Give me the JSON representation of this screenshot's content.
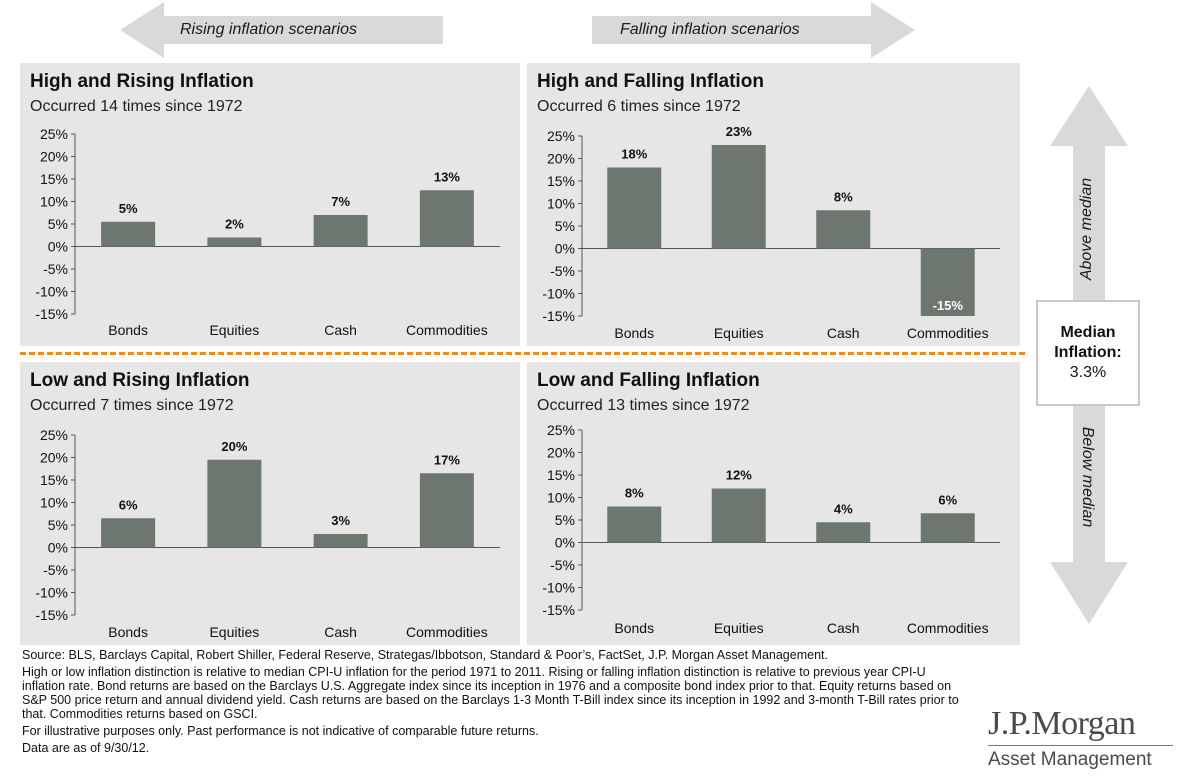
{
  "header": {
    "rising_label": "Rising inflation scenarios",
    "falling_label": "Falling inflation scenarios"
  },
  "side": {
    "above_label": "Above median",
    "below_label": "Below median",
    "median_line1": "Median",
    "median_line2": "Inflation:",
    "median_value": "3.3%"
  },
  "colors": {
    "bar": "#6e7670",
    "panel_bg": "#e6e6e6",
    "divider": "#f08a1e",
    "arrow": "#d9d9d9"
  },
  "chart_data": [
    {
      "type": "bar",
      "title": "High and Rising Inflation",
      "subtitle": "Occurred 14 times since 1972",
      "categories": [
        "Bonds",
        "Equities",
        "Cash",
        "Commodities"
      ],
      "values": [
        5.5,
        2,
        7,
        12.5
      ],
      "data_labels": [
        "5%",
        "2%",
        "7%",
        "13%"
      ],
      "ylim": [
        -15,
        25
      ],
      "yticks": [
        "25%",
        "20%",
        "15%",
        "10%",
        "5%",
        "0%",
        "-5%",
        "-10%",
        "-15%"
      ],
      "grid": false
    },
    {
      "type": "bar",
      "title": "High and Falling Inflation",
      "subtitle": "Occurred 6 times since 1972",
      "categories": [
        "Bonds",
        "Equities",
        "Cash",
        "Commodities"
      ],
      "values": [
        18,
        23,
        8.5,
        -15
      ],
      "data_labels": [
        "18%",
        "23%",
        "8%",
        "-15%"
      ],
      "ylim": [
        -15,
        25
      ],
      "yticks": [
        "25%",
        "20%",
        "15%",
        "10%",
        "5%",
        "0%",
        "-5%",
        "-10%",
        "-15%"
      ],
      "grid": false
    },
    {
      "type": "bar",
      "title": "Low and Rising Inflation",
      "subtitle": "Occurred 7 times since 1972",
      "categories": [
        "Bonds",
        "Equities",
        "Cash",
        "Commodities"
      ],
      "values": [
        6.5,
        19.5,
        3,
        16.5
      ],
      "data_labels": [
        "6%",
        "20%",
        "3%",
        "17%"
      ],
      "ylim": [
        -15,
        25
      ],
      "yticks": [
        "25%",
        "20%",
        "15%",
        "10%",
        "5%",
        "0%",
        "-5%",
        "-10%",
        "-15%"
      ],
      "grid": false
    },
    {
      "type": "bar",
      "title": "Low and Falling Inflation",
      "subtitle": "Occurred 13 times since 1972",
      "categories": [
        "Bonds",
        "Equities",
        "Cash",
        "Commodities"
      ],
      "values": [
        8,
        12,
        4.5,
        6.5
      ],
      "data_labels": [
        "8%",
        "12%",
        "4%",
        "6%"
      ],
      "ylim": [
        -15,
        25
      ],
      "yticks": [
        "25%",
        "20%",
        "15%",
        "10%",
        "5%",
        "0%",
        "-5%",
        "-10%",
        "-15%"
      ],
      "grid": false
    }
  ],
  "footnotes": {
    "source": "Source: BLS, Barclays Capital, Robert Shiller, Federal Reserve, Strategas/Ibbotson, Standard & Poor’s, FactSet, J.P. Morgan Asset Management.",
    "methodology": "High or low inflation distinction is relative to median CPI-U inflation for the period 1971 to 2011.  Rising or falling inflation distinction is relative to previous year CPI-U inflation rate. Bond returns are based on the Barclays U.S. Aggregate index since its inception in 1976 and a composite bond index prior to that. Equity returns based on S&P 500 price return and annual dividend yield. Cash returns are based on the Barclays 1-3 Month T-Bill index since its inception in 1992 and 3-month T-Bill rates prior to that. Commodities returns based on GSCI.",
    "disclaimer": "For illustrative purposes only. Past performance is not indicative of comparable future returns.",
    "date": "Data are as of 9/30/12."
  },
  "logo": {
    "main": "J.P.Morgan",
    "sub": "Asset Management"
  }
}
